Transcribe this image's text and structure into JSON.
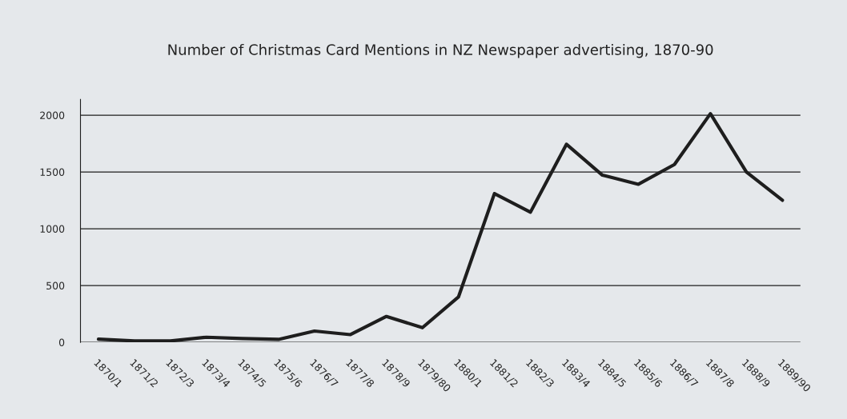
{
  "chart_data": {
    "type": "line",
    "title": "Number of Christmas Card Mentions in NZ Newspaper advertising, 1870-90",
    "categories": [
      "1870/1",
      "1871/2",
      "1872/3",
      "1873/4",
      "1874/5",
      "1875/6",
      "1876/7",
      "1877/8",
      "1878/9",
      "1879/80",
      "1880/1",
      "1881/2",
      "1882/3",
      "1883/4",
      "1884/5",
      "1885/6",
      "1886/7",
      "1887/8",
      "1888/9",
      "1889/90"
    ],
    "series": [
      {
        "color": "#1e1e1e",
        "values": [
          28,
          12,
          12,
          45,
          33,
          26,
          99,
          68,
          228,
          129,
          399,
          1310,
          1146,
          1744,
          1472,
          1392,
          1566,
          2014,
          1500,
          1251
        ]
      }
    ],
    "ylim": [
      0,
      2140
    ],
    "yticks": [
      0,
      500,
      1000,
      1500,
      2000
    ],
    "grid": "y",
    "marker": "none",
    "line_style": "solid"
  }
}
